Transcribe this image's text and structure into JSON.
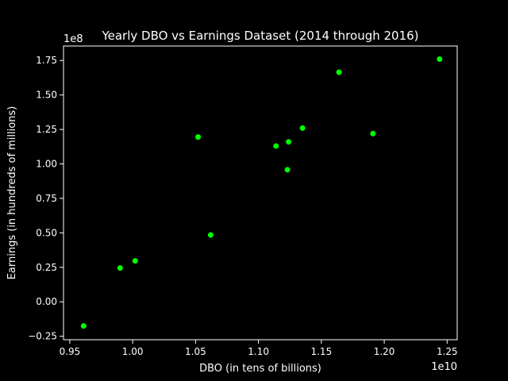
{
  "chart_data": {
    "type": "scatter",
    "title": "Yearly DBO vs Earnings Dataset (2014 through 2016)",
    "xlabel": "DBO (in tens of billions)",
    "ylabel": "Earnings (in hundreds of millions)",
    "x_offset_label": "1e10",
    "y_offset_label": "1e8",
    "xlim": [
      0.945,
      1.258
    ],
    "ylim": [
      -0.275,
      1.855
    ],
    "x_ticks": [
      0.95,
      1.0,
      1.05,
      1.1,
      1.15,
      1.2,
      1.25
    ],
    "x_tick_labels": [
      "0.95",
      "1.00",
      "1.05",
      "1.10",
      "1.15",
      "1.20",
      "1.25"
    ],
    "y_ticks": [
      -0.25,
      0.0,
      0.25,
      0.5,
      0.75,
      1.0,
      1.25,
      1.5,
      1.75
    ],
    "y_tick_labels": [
      "−0.25",
      "0.00",
      "0.25",
      "0.50",
      "0.75",
      "1.00",
      "1.25",
      "1.50",
      "1.75"
    ],
    "grid": false,
    "point_color": "#00ff00",
    "background": "#000000",
    "points": [
      {
        "x": 0.961,
        "y": -0.175
      },
      {
        "x": 0.99,
        "y": 0.245
      },
      {
        "x": 1.002,
        "y": 0.297
      },
      {
        "x": 1.052,
        "y": 1.195
      },
      {
        "x": 1.062,
        "y": 0.485
      },
      {
        "x": 1.114,
        "y": 1.13
      },
      {
        "x": 1.123,
        "y": 0.958
      },
      {
        "x": 1.124,
        "y": 1.16
      },
      {
        "x": 1.135,
        "y": 1.26
      },
      {
        "x": 1.164,
        "y": 1.665
      },
      {
        "x": 1.191,
        "y": 1.22
      },
      {
        "x": 1.244,
        "y": 1.76
      }
    ]
  }
}
